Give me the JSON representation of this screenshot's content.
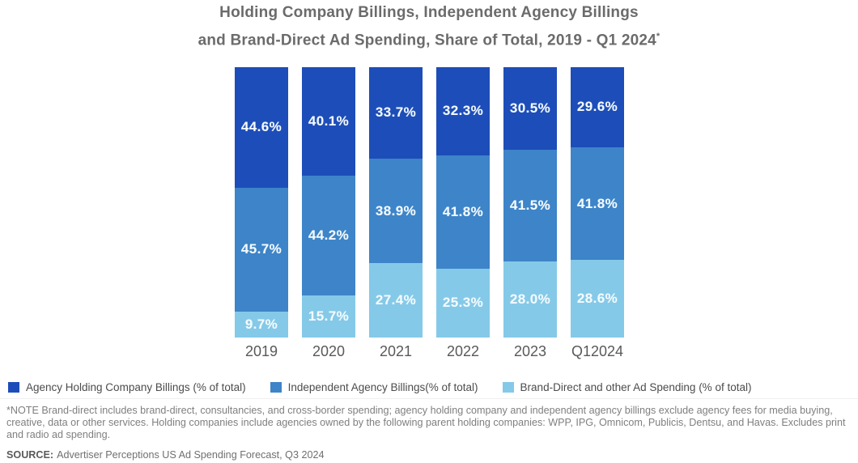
{
  "title": {
    "line1": "Holding Company Billings, Independent Agency Billings",
    "line2": "and Brand-Direct Ad Spending, Share of Total, 2019 - Q1 2024",
    "superscript": "*"
  },
  "chart_data": {
    "type": "bar",
    "stacked": true,
    "percent_of_total": true,
    "categories": [
      "2019",
      "2020",
      "2021",
      "2022",
      "2023",
      "Q12024"
    ],
    "series": [
      {
        "name": "Agency Holding Company Billings (% of total)",
        "color": "#1d4db8",
        "values": [
          44.6,
          40.1,
          33.7,
          32.3,
          30.5,
          29.6
        ]
      },
      {
        "name": "Independent Agency Billings(% of total)",
        "color": "#3d84c8",
        "values": [
          45.7,
          44.2,
          38.9,
          41.8,
          41.5,
          41.8
        ]
      },
      {
        "name": "Brand-Direct and other Ad Spending (% of total)",
        "color": "#85c9e8",
        "values": [
          9.7,
          15.7,
          27.4,
          25.3,
          28.0,
          28.6
        ]
      }
    ],
    "value_suffix": "%",
    "value_decimals": 1,
    "segment_order_top_to_bottom": true,
    "label_color": "#f4fbfe",
    "legend_position": "bottom",
    "grid": false,
    "ylim": [
      0,
      100
    ]
  },
  "footnote": "*NOTE Brand-direct includes brand-direct, consultancies, and cross-border spending; agency holding company and independent agency billings exclude agency fees for media buying, creative, data or other services. Holding companies include agencies owned by the following parent holding companies: WPP, IPG, Omnicom, Publicis, Dentsu, and Havas. Excludes print and radio ad spending.",
  "source": {
    "label": "SOURCE:",
    "text": "Advertiser Perceptions US Ad Spending Forecast, Q3 2024"
  }
}
